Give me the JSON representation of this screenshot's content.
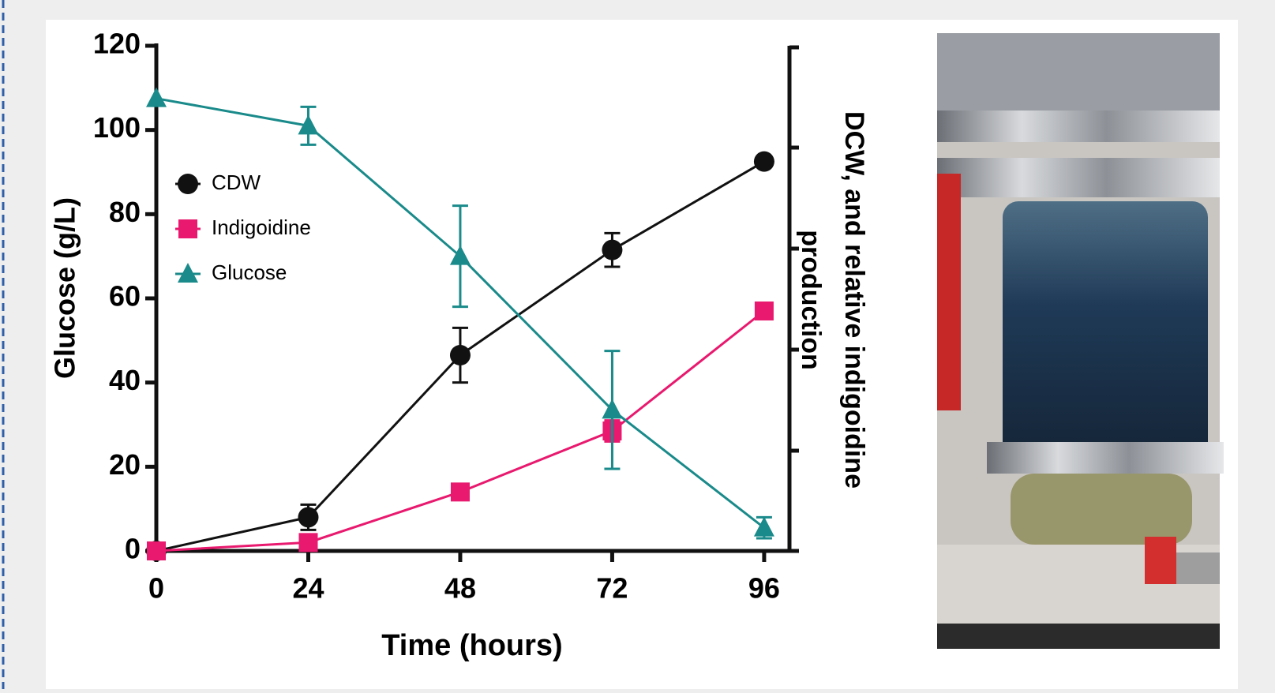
{
  "chart_data": {
    "type": "line",
    "x_label": "Time (hours)",
    "y_label": "Glucose (g/L)",
    "y2_label_lines": [
      "DCW, and relative indigoidine",
      "production"
    ],
    "x": [
      0,
      24,
      48,
      72,
      96
    ],
    "xlim": [
      0,
      100
    ],
    "xticks": [
      0,
      24,
      48,
      72,
      96
    ],
    "ylim": [
      0,
      120
    ],
    "yticks": [
      0,
      20,
      40,
      60,
      80,
      100,
      120
    ],
    "series": [
      {
        "name": "CDW",
        "color": "#111111",
        "marker": "circle",
        "values": [
          0,
          8,
          46.5,
          71.5,
          92.5
        ],
        "error": [
          0,
          3,
          6.5,
          4,
          0
        ]
      },
      {
        "name": "Indigoidine",
        "color": "#e8196e",
        "marker": "square",
        "values": [
          0,
          2,
          14,
          28.5,
          57
        ],
        "error": [
          0,
          0,
          0,
          2.5,
          0
        ]
      },
      {
        "name": "Glucose",
        "color": "#1a8a8a",
        "marker": "triangle",
        "values": [
          107.5,
          101,
          70,
          33.5,
          5.5
        ],
        "error": [
          0,
          4.5,
          12,
          14,
          2.5
        ]
      }
    ]
  }
}
